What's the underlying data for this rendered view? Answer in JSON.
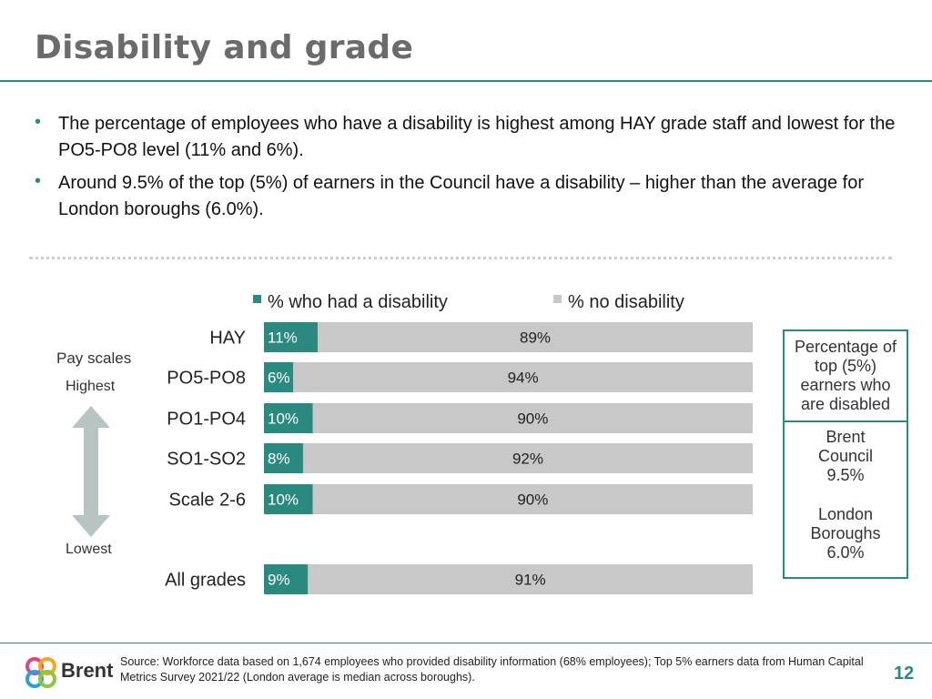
{
  "title": "Disability and grade",
  "bullets": [
    "The percentage of employees who have a disability is highest among HAY grade staff and lowest for the PO5-PO8 level (11% and 6%).",
    "Around 9.5% of the top (5%) of earners in the Council have a disability – higher than the average for London boroughs (6.0%)."
  ],
  "scale": {
    "title": "Pay scales",
    "highest": "Highest",
    "lowest": "Lowest"
  },
  "chart_data": {
    "type": "bar",
    "orientation": "horizontal",
    "stacked": true,
    "categories": [
      "HAY",
      "PO5-PO8",
      "PO1-PO4",
      "SO1-SO2",
      "Scale 2-6",
      "All grades"
    ],
    "series": [
      {
        "name": "% who had a disability",
        "color": "#2a8a80",
        "values": [
          11,
          6,
          10,
          8,
          10,
          9
        ],
        "labels": [
          "11%",
          "6%",
          "10%",
          "8%",
          "10%",
          "9%"
        ]
      },
      {
        "name": "% no disability",
        "color": "#c8c8c8",
        "values": [
          89,
          94,
          90,
          92,
          90,
          91
        ],
        "labels": [
          "89%",
          "94%",
          "90%",
          "92%",
          "90%",
          "91%"
        ]
      }
    ],
    "xlim": [
      0,
      100
    ],
    "legend": "top"
  },
  "sidebox": {
    "heading": "Percentage of top (5%) earners who are disabled",
    "brent_lines": [
      "Brent",
      "Council",
      "9.5%"
    ],
    "london_lines": [
      "London",
      "Boroughs",
      "6.0%"
    ]
  },
  "footer": {
    "logo_text": "Brent",
    "source": "Source: Workforce data based on 1,674 employees who provided disability information (68% employees); Top 5% earners data from Human Capital Metrics Survey 2021/22 (London average is median across boroughs).",
    "page_number": "12"
  }
}
